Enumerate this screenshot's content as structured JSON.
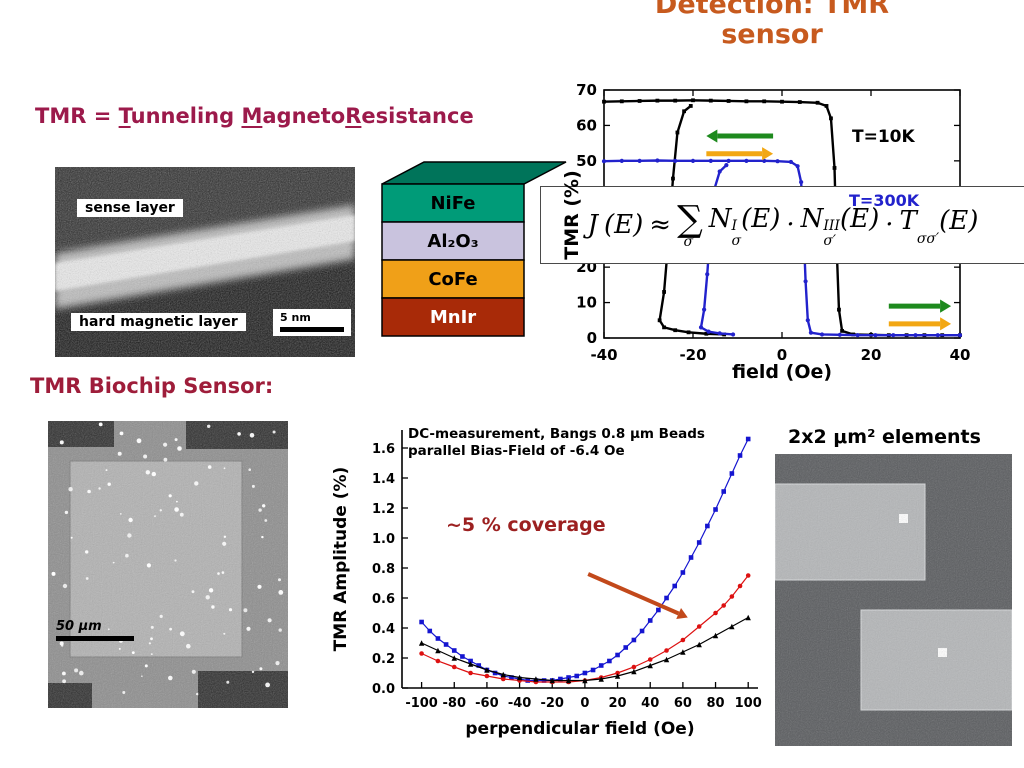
{
  "slide": {
    "title_line1": "Detection: TMR",
    "title_line2": "sensor",
    "title_color": "#c75a1e"
  },
  "tmr_heading": {
    "prefix": "TMR = ",
    "t": "T",
    "t_rest": "unneling ",
    "m": "M",
    "m_rest": "agneto",
    "r": "R",
    "r_rest": "esistance",
    "color": "#9c1a4b"
  },
  "tem": {
    "sense_label": "sense layer",
    "hard_label": "hard magnetic layer",
    "scale": "5 nm"
  },
  "stack": {
    "top_color": "#00745a",
    "layers": [
      {
        "name": "NiFe",
        "color": "#009b78",
        "text_color": "#000000"
      },
      {
        "name": "Al₂O₃",
        "color": "#c9c3de",
        "text_color": "#000000"
      },
      {
        "name": "CoFe",
        "color": "#f0a018",
        "text_color": "#000000"
      },
      {
        "name": "MnIr",
        "color": "#a82a08",
        "text_color": "#ffffff"
      }
    ]
  },
  "formula": {
    "lhs": "J",
    "arg": "(E)",
    "approx": "≈",
    "sum": "∑",
    "sum_sub": "σ′",
    "t1": {
      "base": "N",
      "sup": "I",
      "sub": "σ"
    },
    "t2": {
      "base": "N",
      "sup": "III",
      "sub": "σ′"
    },
    "t3": {
      "base": "T",
      "sup": "",
      "sub": "σσ′"
    },
    "dot": "·"
  },
  "biochip_heading": "TMR Biochip Sensor:",
  "biochip_scale": "50 μm",
  "elements_label": "2x2 μm² elements",
  "chart_data": [
    {
      "type": "line",
      "name": "tmr-vs-field-hysteresis",
      "xlabel": "field  (Oe)",
      "ylabel": "TMR (%)",
      "xlim": [
        -40,
        40
      ],
      "ylim": [
        0,
        70
      ],
      "xticks": [
        -40,
        -20,
        0,
        20,
        40
      ],
      "yticks": [
        0,
        10,
        20,
        30,
        40,
        50,
        60,
        70
      ],
      "frame": true,
      "legend_position": "none",
      "series": [
        {
          "name": "T=10K",
          "color": "#000000",
          "marker": "square",
          "size": 3.8,
          "lines": [
            [
              [
                -40,
                66.7
              ],
              [
                -36,
                66.8
              ],
              [
                -32,
                66.9
              ],
              [
                -28,
                67.0
              ],
              [
                -24,
                67.0
              ],
              [
                -20,
                67.1
              ],
              [
                -16,
                67.0
              ],
              [
                -12,
                66.9
              ],
              [
                -8,
                66.8
              ],
              [
                -4,
                66.8
              ],
              [
                0,
                66.7
              ],
              [
                4,
                66.6
              ],
              [
                8,
                66.4
              ],
              [
                10,
                65.5
              ],
              [
                11,
                62
              ],
              [
                11.8,
                48
              ],
              [
                12.3,
                25
              ],
              [
                12.8,
                8
              ],
              [
                13.5,
                2
              ],
              [
                16,
                1
              ],
              [
                20,
                0.9
              ],
              [
                24,
                0.8
              ],
              [
                28,
                0.8
              ],
              [
                32,
                0.8
              ],
              [
                36,
                0.8
              ],
              [
                40,
                0.8
              ]
            ],
            [
              [
                -20.5,
                65.5
              ],
              [
                -22,
                64
              ],
              [
                -23.5,
                58
              ],
              [
                -24.5,
                45
              ],
              [
                -25.5,
                28
              ],
              [
                -26.5,
                13
              ],
              [
                -27.5,
                5
              ],
              [
                -26.5,
                3
              ],
              [
                -24,
                2.2
              ],
              [
                -21,
                1.6
              ],
              [
                -17,
                1.2
              ],
              [
                -13,
                1
              ]
            ]
          ]
        },
        {
          "name": "T=300K",
          "color": "#2222cc",
          "marker": "circle",
          "size": 4.2,
          "lines": [
            [
              [
                -40,
                49.9
              ],
              [
                -36,
                50
              ],
              [
                -32,
                50
              ],
              [
                -28,
                50.1
              ],
              [
                -24,
                50
              ],
              [
                -20,
                50
              ],
              [
                -16,
                50
              ],
              [
                -12,
                50
              ],
              [
                -8,
                50
              ],
              [
                -4,
                50
              ],
              [
                -1,
                49.9
              ],
              [
                2,
                49.7
              ],
              [
                3.5,
                48.5
              ],
              [
                4.3,
                44
              ],
              [
                4.8,
                32
              ],
              [
                5.3,
                16
              ],
              [
                5.8,
                5
              ],
              [
                6.5,
                1.5
              ],
              [
                9,
                1
              ],
              [
                13,
                0.9
              ],
              [
                17,
                0.8
              ],
              [
                21,
                0.8
              ],
              [
                25,
                0.8
              ],
              [
                30,
                0.8
              ],
              [
                35,
                0.8
              ],
              [
                40,
                0.8
              ]
            ],
            [
              [
                -12.5,
                48.8
              ],
              [
                -14,
                47
              ],
              [
                -15.2,
                42
              ],
              [
                -16,
                32
              ],
              [
                -16.8,
                18
              ],
              [
                -17.5,
                8
              ],
              [
                -18.2,
                3
              ],
              [
                -16.5,
                1.8
              ],
              [
                -14,
                1.3
              ],
              [
                -11,
                1
              ]
            ]
          ]
        }
      ],
      "arrows": [
        {
          "from": [
            -2,
            57
          ],
          "to": [
            -17,
            57
          ],
          "color": "#1e8a1e"
        },
        {
          "from": [
            -17,
            52
          ],
          "to": [
            -2,
            52
          ],
          "color": "#f2a713"
        },
        {
          "from": [
            24,
            9
          ],
          "to": [
            38,
            9
          ],
          "color": "#1e8a1e"
        },
        {
          "from": [
            24,
            4
          ],
          "to": [
            38,
            4
          ],
          "color": "#f2a713"
        }
      ]
    },
    {
      "type": "scatter",
      "name": "tmr-amplitude-vs-perpendicular-field",
      "title_line1": "DC-measurement, Bangs 0.8 μm Beads",
      "title_line2": "parallel Bias-Field of -6.4 Oe",
      "xlabel": "perpendicular field (Oe)",
      "ylabel": "TMR Amplitude (%)",
      "xlim": [
        -112,
        106
      ],
      "ylim": [
        0,
        1.72
      ],
      "xticks": [
        -100,
        -80,
        -60,
        -40,
        -20,
        0,
        20,
        40,
        60,
        80,
        100
      ],
      "ytick_vals": [
        0,
        0.2,
        0.4,
        0.6,
        0.8,
        1.0,
        1.2,
        1.4,
        1.6
      ],
      "ytick_labels": [
        "0.0",
        "0.2",
        "0.4",
        "0.6",
        "0.8",
        "1.0",
        "1.2",
        "1.4",
        "1.6"
      ],
      "frame": false,
      "legend_position": "none",
      "annotation": {
        "text": "~5 % coverage",
        "color": "#9c2020"
      },
      "arrows": [
        {
          "from": [
            2,
            0.76
          ],
          "to": [
            63,
            0.47
          ],
          "color": "#c2491b"
        }
      ],
      "series": [
        {
          "name": "blue-squares",
          "color": "#1515d0",
          "marker": "square",
          "size": 4.6,
          "points": [
            [
              -100,
              0.44
            ],
            [
              -95,
              0.38
            ],
            [
              -90,
              0.33
            ],
            [
              -85,
              0.29
            ],
            [
              -80,
              0.25
            ],
            [
              -75,
              0.21
            ],
            [
              -70,
              0.18
            ],
            [
              -65,
              0.15
            ],
            [
              -60,
              0.12
            ],
            [
              -55,
              0.1
            ],
            [
              -50,
              0.08
            ],
            [
              -45,
              0.07
            ],
            [
              -40,
              0.06
            ],
            [
              -35,
              0.05
            ],
            [
              -30,
              0.05
            ],
            [
              -25,
              0.05
            ],
            [
              -20,
              0.05
            ],
            [
              -15,
              0.06
            ],
            [
              -10,
              0.07
            ],
            [
              -5,
              0.08
            ],
            [
              0,
              0.1
            ],
            [
              5,
              0.12
            ],
            [
              10,
              0.15
            ],
            [
              15,
              0.18
            ],
            [
              20,
              0.22
            ],
            [
              25,
              0.27
            ],
            [
              30,
              0.32
            ],
            [
              35,
              0.38
            ],
            [
              40,
              0.45
            ],
            [
              45,
              0.52
            ],
            [
              50,
              0.6
            ],
            [
              55,
              0.68
            ],
            [
              60,
              0.77
            ],
            [
              65,
              0.87
            ],
            [
              70,
              0.97
            ],
            [
              75,
              1.08
            ],
            [
              80,
              1.19
            ],
            [
              85,
              1.31
            ],
            [
              90,
              1.43
            ],
            [
              95,
              1.55
            ],
            [
              100,
              1.66
            ]
          ]
        },
        {
          "name": "red-circles",
          "color": "#dd1111",
          "marker": "circle",
          "size": 4.6,
          "points": [
            [
              -100,
              0.23
            ],
            [
              -90,
              0.18
            ],
            [
              -80,
              0.14
            ],
            [
              -70,
              0.1
            ],
            [
              -60,
              0.08
            ],
            [
              -50,
              0.06
            ],
            [
              -40,
              0.05
            ],
            [
              -30,
              0.04
            ],
            [
              -20,
              0.04
            ],
            [
              -10,
              0.04
            ],
            [
              0,
              0.05
            ],
            [
              10,
              0.07
            ],
            [
              20,
              0.1
            ],
            [
              30,
              0.14
            ],
            [
              40,
              0.19
            ],
            [
              50,
              0.25
            ],
            [
              60,
              0.32
            ],
            [
              70,
              0.41
            ],
            [
              80,
              0.5
            ],
            [
              85,
              0.55
            ],
            [
              90,
              0.61
            ],
            [
              95,
              0.68
            ],
            [
              100,
              0.75
            ]
          ]
        },
        {
          "name": "black-triangles",
          "color": "#000000",
          "marker": "triangle",
          "size": 5.4,
          "points": [
            [
              -100,
              0.3
            ],
            [
              -90,
              0.25
            ],
            [
              -80,
              0.2
            ],
            [
              -70,
              0.16
            ],
            [
              -60,
              0.12
            ],
            [
              -50,
              0.09
            ],
            [
              -40,
              0.07
            ],
            [
              -30,
              0.06
            ],
            [
              -20,
              0.05
            ],
            [
              -10,
              0.05
            ],
            [
              0,
              0.05
            ],
            [
              10,
              0.06
            ],
            [
              20,
              0.08
            ],
            [
              30,
              0.11
            ],
            [
              40,
              0.15
            ],
            [
              50,
              0.19
            ],
            [
              60,
              0.24
            ],
            [
              70,
              0.29
            ],
            [
              80,
              0.35
            ],
            [
              90,
              0.41
            ],
            [
              100,
              0.47
            ]
          ]
        }
      ]
    }
  ]
}
